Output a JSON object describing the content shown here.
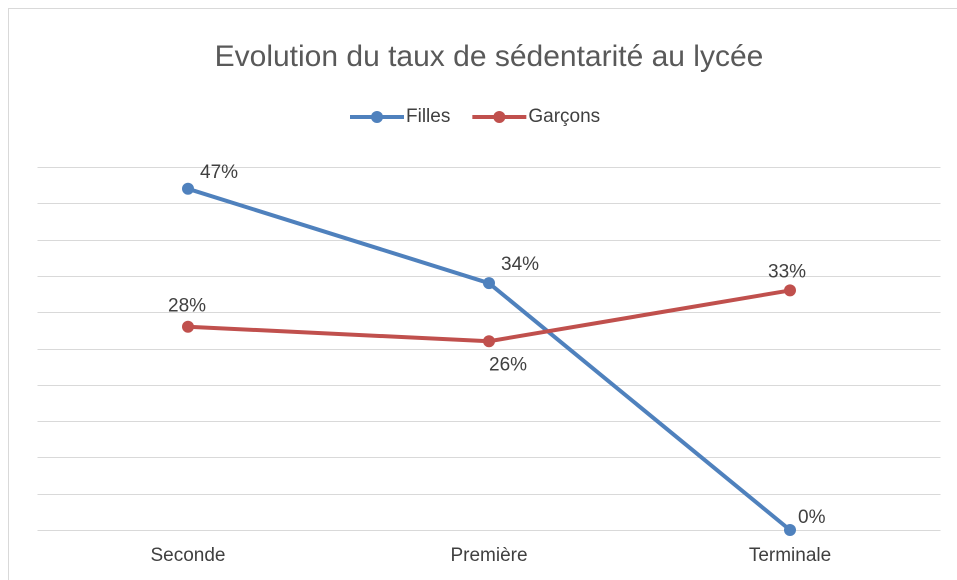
{
  "chart_data": {
    "type": "line",
    "title": "Evolution du taux de sédentarité au lycée",
    "categories": [
      "Seconde",
      "Première",
      "Terminale"
    ],
    "series": [
      {
        "name": "Filles",
        "color": "#4f81bd",
        "values": [
          47,
          34,
          0
        ],
        "value_labels": [
          "47%",
          "34%",
          "0%"
        ]
      },
      {
        "name": "Garçons",
        "color": "#c0504d",
        "values": [
          28,
          26,
          33
        ],
        "value_labels": [
          "28%",
          "26%",
          "33%"
        ]
      }
    ],
    "ylim": [
      0,
      50
    ],
    "yticks": [
      0,
      5,
      10,
      15,
      20,
      25,
      30,
      35,
      40,
      45,
      50
    ],
    "grid": true,
    "legend": "top"
  }
}
